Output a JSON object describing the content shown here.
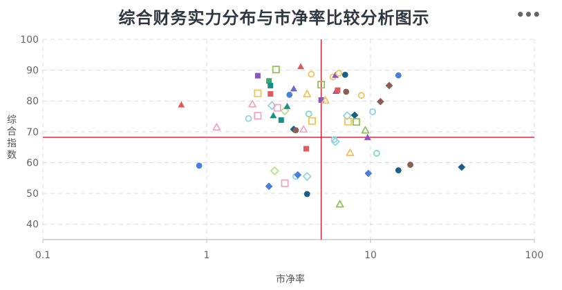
{
  "title": "综合财务实力分布与市净率比较分析图示",
  "menu": {
    "icon": "ellipsis-icon",
    "label": "•••"
  },
  "chart_data": {
    "type": "scatter",
    "title": "综合财务实力分布与市净率比较分析图示",
    "xlabel": "市净率",
    "ylabel": "综合指数",
    "x_scale": "log",
    "xlim": [
      0.1,
      100
    ],
    "ylim": [
      35,
      100
    ],
    "x_ticks": [
      "0.1",
      "1",
      "10",
      "100"
    ],
    "y_ticks": [
      40,
      50,
      60,
      70,
      80,
      90,
      100
    ],
    "grid": true,
    "reference_lines": {
      "x": 5.0,
      "y": 68.2,
      "color": "#d0021b"
    },
    "points": [
      {
        "x": 0.7,
        "y": 78.8,
        "shape": "triangle",
        "color": "#e05c5c",
        "filled": true
      },
      {
        "x": 0.9,
        "y": 59.0,
        "shape": "circle",
        "color": "#4a7fdb",
        "filled": true
      },
      {
        "x": 1.15,
        "y": 71.5,
        "shape": "triangle",
        "color": "#f3a6c0",
        "filled": false
      },
      {
        "x": 1.8,
        "y": 74.3,
        "shape": "circle",
        "color": "#8fd3e8",
        "filled": false
      },
      {
        "x": 1.9,
        "y": 79.0,
        "shape": "triangle",
        "color": "#f3a6c0",
        "filled": false
      },
      {
        "x": 2.05,
        "y": 88.2,
        "shape": "square",
        "color": "#8a55c0",
        "filled": true
      },
      {
        "x": 2.05,
        "y": 82.5,
        "shape": "square",
        "color": "#f2c35a",
        "filled": false
      },
      {
        "x": 2.05,
        "y": 75.2,
        "shape": "square",
        "color": "#f3a6c0",
        "filled": false
      },
      {
        "x": 2.4,
        "y": 86.5,
        "shape": "square",
        "color": "#3aa76d",
        "filled": true
      },
      {
        "x": 2.45,
        "y": 85.0,
        "shape": "square",
        "color": "#1a8f85",
        "filled": true
      },
      {
        "x": 2.45,
        "y": 82.3,
        "shape": "square",
        "color": "#e05c5c",
        "filled": true
      },
      {
        "x": 2.5,
        "y": 78.5,
        "shape": "diamond",
        "color": "#8fd3e8",
        "filled": false
      },
      {
        "x": 2.55,
        "y": 75.3,
        "shape": "triangle",
        "color": "#1a8f85",
        "filled": true
      },
      {
        "x": 2.65,
        "y": 90.2,
        "shape": "square",
        "color": "#92c254",
        "filled": false
      },
      {
        "x": 2.7,
        "y": 77.8,
        "shape": "square",
        "color": "#f3a6c0",
        "filled": false
      },
      {
        "x": 2.85,
        "y": 73.8,
        "shape": "square",
        "color": "#1a8f85",
        "filled": true
      },
      {
        "x": 3.0,
        "y": 76.8,
        "shape": "diamond",
        "color": "#b8e08a",
        "filled": false
      },
      {
        "x": 3.1,
        "y": 78.3,
        "shape": "triangle",
        "color": "#1a8f85",
        "filled": true
      },
      {
        "x": 3.2,
        "y": 82.0,
        "shape": "circle",
        "color": "#4a7fdb",
        "filled": true
      },
      {
        "x": 3.4,
        "y": 84.0,
        "shape": "triangle",
        "color": "#6a68c8",
        "filled": true
      },
      {
        "x": 3.4,
        "y": 70.8,
        "shape": "diamond",
        "color": "#1a5f87",
        "filled": true
      },
      {
        "x": 3.5,
        "y": 70.5,
        "shape": "circle",
        "color": "#8b5e54",
        "filled": true
      },
      {
        "x": 3.75,
        "y": 91.2,
        "shape": "triangle",
        "color": "#e05c5c",
        "filled": true
      },
      {
        "x": 3.9,
        "y": 70.8,
        "shape": "triangle",
        "color": "#f3a6c0",
        "filled": false
      },
      {
        "x": 4.1,
        "y": 82.3,
        "shape": "triangle",
        "color": "#f2c35a",
        "filled": false
      },
      {
        "x": 4.2,
        "y": 75.8,
        "shape": "circle",
        "color": "#7fd8c0",
        "filled": false
      },
      {
        "x": 4.35,
        "y": 88.7,
        "shape": "circle",
        "color": "#f2c35a",
        "filled": false
      },
      {
        "x": 4.4,
        "y": 73.5,
        "shape": "square",
        "color": "#f2c35a",
        "filled": false
      },
      {
        "x": 4.05,
        "y": 64.5,
        "shape": "square",
        "color": "#e05c5c",
        "filled": true
      },
      {
        "x": 4.1,
        "y": 49.8,
        "shape": "circle",
        "color": "#1a5f87",
        "filled": true
      },
      {
        "x": 5.0,
        "y": 85.3,
        "shape": "square",
        "color": "#92c254",
        "filled": false
      },
      {
        "x": 5.0,
        "y": 80.3,
        "shape": "square",
        "color": "#8a55c0",
        "filled": true
      },
      {
        "x": 5.3,
        "y": 80.2,
        "shape": "triangle",
        "color": "#f2c35a",
        "filled": false
      },
      {
        "x": 5.9,
        "y": 87.8,
        "shape": "circle",
        "color": "#f2c35a",
        "filled": false
      },
      {
        "x": 6.1,
        "y": 88.4,
        "shape": "triangle",
        "color": "#8a55c0",
        "filled": true
      },
      {
        "x": 6.15,
        "y": 83.2,
        "shape": "triangle",
        "color": "#8a55c0",
        "filled": true
      },
      {
        "x": 6.3,
        "y": 83.5,
        "shape": "square",
        "color": "#e05c5c",
        "filled": true
      },
      {
        "x": 6.4,
        "y": 89.0,
        "shape": "circle",
        "color": "#f2c35a",
        "filled": false
      },
      {
        "x": 6.0,
        "y": 67.5,
        "shape": "circle",
        "color": "#8fd3e8",
        "filled": false
      },
      {
        "x": 6.1,
        "y": 66.8,
        "shape": "diamond",
        "color": "#8fd3e8",
        "filled": false
      },
      {
        "x": 6.5,
        "y": 46.5,
        "shape": "triangle",
        "color": "#92c254",
        "filled": false
      },
      {
        "x": 7.0,
        "y": 88.5,
        "shape": "circle",
        "color": "#1a5f87",
        "filled": true
      },
      {
        "x": 7.1,
        "y": 83.0,
        "shape": "circle",
        "color": "#8b5e54",
        "filled": true
      },
      {
        "x": 7.2,
        "y": 75.2,
        "shape": "diamond",
        "color": "#8fd3e8",
        "filled": false
      },
      {
        "x": 7.3,
        "y": 73.3,
        "shape": "square",
        "color": "#f2c35a",
        "filled": false
      },
      {
        "x": 7.5,
        "y": 63.2,
        "shape": "triangle",
        "color": "#f2c35a",
        "filled": false
      },
      {
        "x": 8.0,
        "y": 75.4,
        "shape": "diamond",
        "color": "#1a5f87",
        "filled": true
      },
      {
        "x": 8.2,
        "y": 73.2,
        "shape": "square",
        "color": "#92c254",
        "filled": false
      },
      {
        "x": 8.8,
        "y": 81.8,
        "shape": "circle",
        "color": "#f2c35a",
        "filled": false
      },
      {
        "x": 9.3,
        "y": 70.5,
        "shape": "triangle",
        "color": "#92c254",
        "filled": false
      },
      {
        "x": 9.6,
        "y": 68.2,
        "shape": "triangle",
        "color": "#8a55c0",
        "filled": true
      },
      {
        "x": 9.7,
        "y": 56.5,
        "shape": "diamond",
        "color": "#4a7fdb",
        "filled": true
      },
      {
        "x": 10.3,
        "y": 76.5,
        "shape": "circle",
        "color": "#8fd3e8",
        "filled": false
      },
      {
        "x": 10.9,
        "y": 63.0,
        "shape": "circle",
        "color": "#7fd8c0",
        "filled": false
      },
      {
        "x": 11.5,
        "y": 79.8,
        "shape": "diamond",
        "color": "#8b5e54",
        "filled": true
      },
      {
        "x": 13.0,
        "y": 85.0,
        "shape": "diamond",
        "color": "#8b5e54",
        "filled": true
      },
      {
        "x": 14.8,
        "y": 88.3,
        "shape": "circle",
        "color": "#4a7fdb",
        "filled": true
      },
      {
        "x": 14.8,
        "y": 57.5,
        "shape": "circle",
        "color": "#1a5f87",
        "filled": true
      },
      {
        "x": 17.5,
        "y": 59.3,
        "shape": "circle",
        "color": "#8b5e54",
        "filled": true
      },
      {
        "x": 36.0,
        "y": 58.5,
        "shape": "diamond",
        "color": "#1a5f87",
        "filled": true
      },
      {
        "x": 2.4,
        "y": 52.3,
        "shape": "diamond",
        "color": "#4a7fdb",
        "filled": true
      },
      {
        "x": 2.6,
        "y": 57.3,
        "shape": "diamond",
        "color": "#b8e08a",
        "filled": false
      },
      {
        "x": 3.0,
        "y": 53.3,
        "shape": "square",
        "color": "#f3a6c0",
        "filled": false
      },
      {
        "x": 3.5,
        "y": 55.5,
        "shape": "circle",
        "color": "#8fd3e8",
        "filled": false
      },
      {
        "x": 3.6,
        "y": 56.0,
        "shape": "diamond",
        "color": "#4a7fdb",
        "filled": true
      },
      {
        "x": 4.1,
        "y": 55.5,
        "shape": "diamond",
        "color": "#8fd3e8",
        "filled": false
      }
    ]
  }
}
